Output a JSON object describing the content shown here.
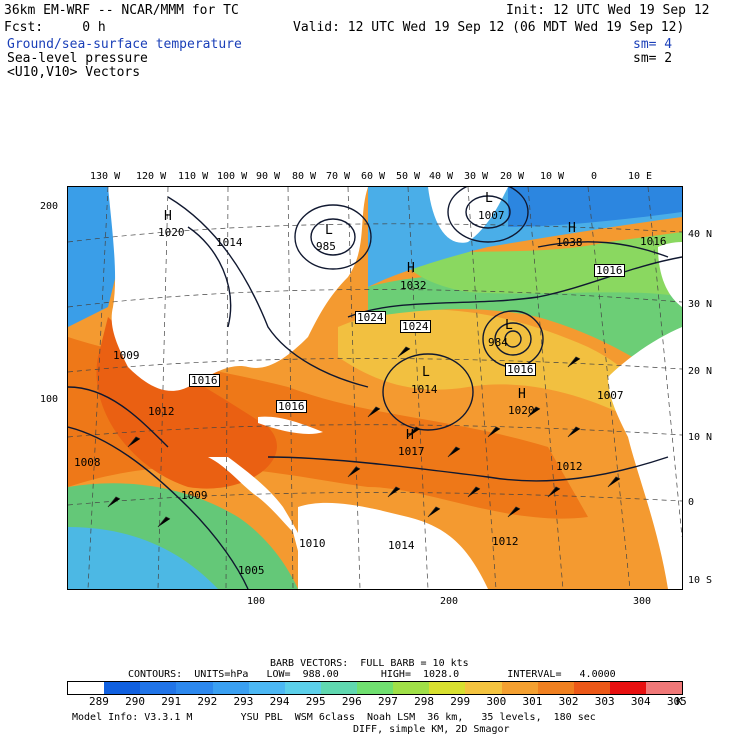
{
  "header": {
    "model_title": "36km EM-WRF -- NCAR/MMM for TC",
    "init": "Init: 12 UTC Wed 19 Sep 12",
    "fcst": "Fcst:     0 h",
    "valid": "Valid: 12 UTC Wed 19 Sep 12 (06 MDT Wed 19 Sep 12)",
    "fields": [
      {
        "name": "Ground/sea-surface temperature",
        "sm": "sm= 4",
        "color": "#1a3fb8"
      },
      {
        "name": "Sea-level pressure",
        "sm": "sm= 2",
        "color": "#000000"
      },
      {
        "name": "<U10,V10> Vectors",
        "sm": "",
        "color": "#000000"
      }
    ]
  },
  "map": {
    "top_lon_labels": [
      "130 W",
      "120 W",
      "110 W",
      "100 W",
      "90 W",
      "80 W",
      "70 W",
      "60 W",
      "50 W",
      "40 W",
      "30 W",
      "20 W",
      "10 W",
      "0",
      "10 E"
    ],
    "right_lat_labels": [
      "40 N",
      "30 N",
      "20 N",
      "10 N",
      "0",
      "10 S"
    ],
    "left_grid_labels": [
      "200",
      "100"
    ],
    "bottom_grid_labels": [
      "100",
      "200",
      "300"
    ],
    "pressure_centers": [
      {
        "symbol": "H",
        "value": "1020"
      },
      {
        "symbol": "L",
        "value": "985"
      },
      {
        "symbol": "L",
        "value": "1007"
      },
      {
        "symbol": "H",
        "value": "1032"
      },
      {
        "symbol": "H",
        "value": "1038"
      },
      {
        "symbol": "L",
        "value": "984"
      },
      {
        "symbol": "H",
        "value": "1020"
      },
      {
        "symbol": "H",
        "value": "1017"
      },
      {
        "symbol": "L",
        "value": "1014"
      }
    ],
    "contour_labels": [
      "1016",
      "1024",
      "1024",
      "1016",
      "1016",
      "1016",
      "1012",
      "1012",
      "1012",
      "1008",
      "1009",
      "1009",
      "1005",
      "1010",
      "1014",
      "1007",
      "1014",
      "1016"
    ],
    "land_color": "#ffffff",
    "sst_colors": {
      "cold": "#2a8ae0",
      "cool": "#4fb0e8",
      "mild": "#64c878",
      "warm": "#f4c040",
      "hot": "#f07818",
      "hottest": "#e85a10"
    }
  },
  "footer": {
    "barb_vectors": "BARB VECTORS:  FULL BARB = 10 kts",
    "contours_line": "CONTOURS:  UNITS=hPa   LOW=  988.00       HIGH=  1028.0        INTERVAL=   4.0000",
    "colorbar_values": [
      "289",
      "290",
      "291",
      "292",
      "293",
      "294",
      "295",
      "296",
      "297",
      "298",
      "299",
      "300",
      "301",
      "302",
      "303",
      "304",
      "305"
    ],
    "colorbar_unit": "K",
    "colorbar_colors": [
      "#ffffff",
      "#1060e0",
      "#2074e8",
      "#2c88ee",
      "#3aa0f2",
      "#4cb8f4",
      "#5cd0ea",
      "#60d8b0",
      "#70e070",
      "#a0e048",
      "#d8e030",
      "#f4c440",
      "#f4a030",
      "#f08020",
      "#ec5818",
      "#e81010",
      "#f07878"
    ],
    "model_info": "Model Info: V3.3.1 M        YSU PBL  WSM 6class  Noah LSM  36 km,   35 levels,  180 sec",
    "model_info2": "DIFF, simple KM, 2D Smagor"
  }
}
